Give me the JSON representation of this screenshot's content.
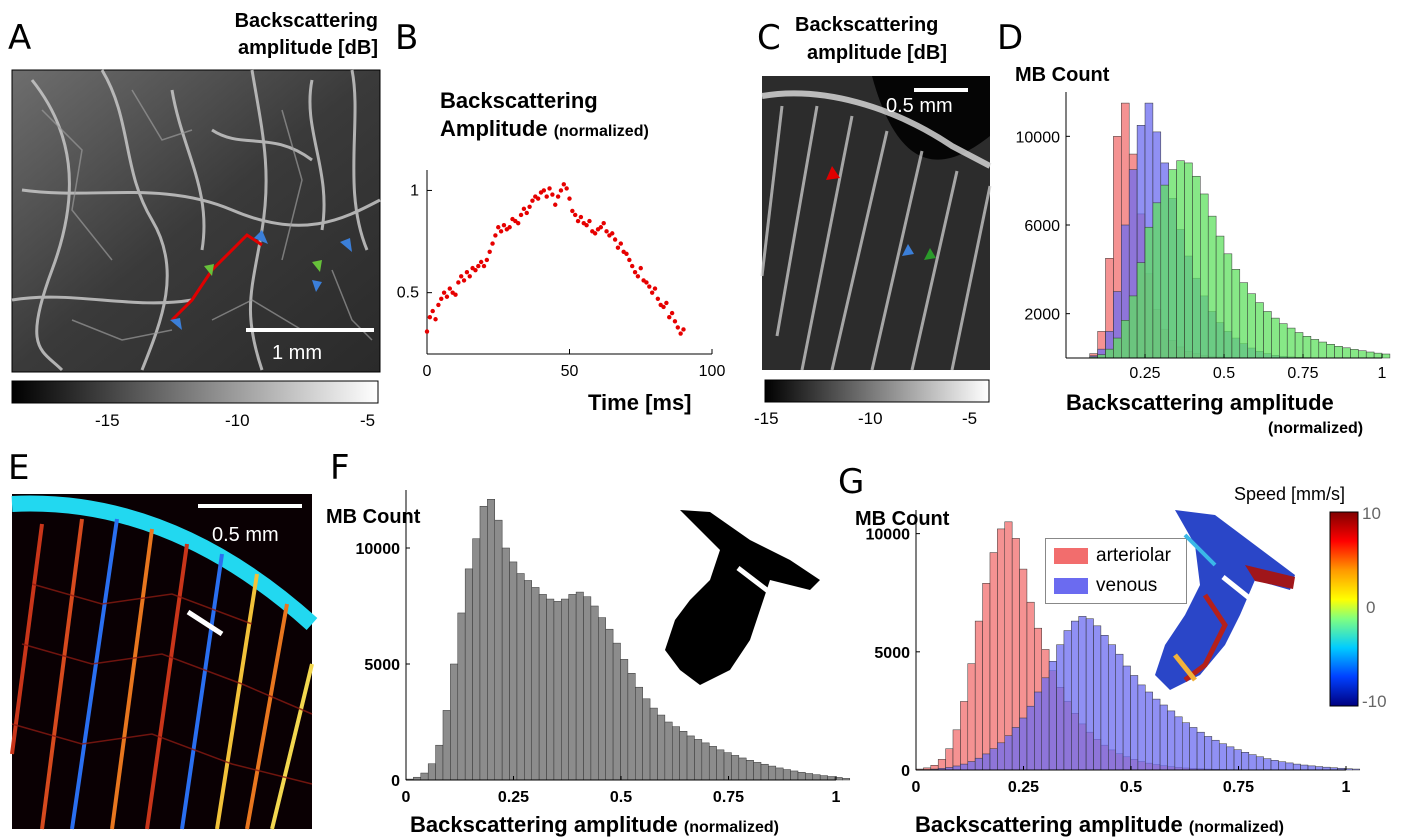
{
  "panels": {
    "A": {
      "letter": "A",
      "title1": "Backscattering",
      "title2": "amplitude [dB]",
      "scalebar": "1 mm",
      "colorbar_ticks": [
        "-15",
        "-10",
        "-5"
      ]
    },
    "B": {
      "letter": "B",
      "ylabel1": "Backscattering",
      "ylabel2": "Amplitude",
      "ylabel_suffix": "(normalized)",
      "xlabel": "Time [ms]"
    },
    "C": {
      "letter": "C",
      "title1": "Backscattering",
      "title2": "amplitude [dB]",
      "scalebar": "0.5 mm",
      "colorbar_ticks": [
        "-15",
        "-10",
        "-5"
      ]
    },
    "D": {
      "letter": "D",
      "ylabel": "MB Count",
      "xlabel1": "Backscattering amplitude",
      "xlabel2": "(normalized)"
    },
    "E": {
      "letter": "E",
      "scalebar": "0.5 mm"
    },
    "F": {
      "letter": "F",
      "ylabel": "MB Count",
      "xlabel": "Backscattering amplitude",
      "xlabel_suffix": "(normalized)"
    },
    "G": {
      "letter": "G",
      "ylabel": "MB Count",
      "xlabel": "Backscattering amplitude",
      "xlabel_suffix": "(normalized)",
      "speed_label": "Speed [mm/s]",
      "speed_ticks": [
        "10",
        "0",
        "-10"
      ],
      "legend": [
        "arteriolar",
        "venous"
      ]
    }
  },
  "colors": {
    "arteriolar": "#f26d6d",
    "venous": "#6b6bf0",
    "green": "#5fe05f",
    "gray": "#8c8c8c",
    "red_dot": "#e60000"
  },
  "chart_data": [
    {
      "id": "B",
      "type": "scatter",
      "xlabel": "Time [ms]",
      "ylabel": "Backscattering Amplitude (normalized)",
      "xlim": [
        0,
        100
      ],
      "ylim": [
        0.2,
        1.1
      ],
      "xticks": [
        0,
        50,
        100
      ],
      "yticks": [
        0.5,
        1
      ],
      "x": [
        0,
        1,
        2,
        3,
        4,
        5,
        6,
        7,
        8,
        9,
        10,
        11,
        12,
        13,
        14,
        15,
        16,
        17,
        18,
        19,
        20,
        21,
        22,
        23,
        24,
        25,
        26,
        27,
        28,
        29,
        30,
        31,
        32,
        33,
        34,
        35,
        36,
        37,
        38,
        39,
        40,
        41,
        42,
        43,
        44,
        45,
        46,
        47,
        48,
        49,
        50,
        51,
        52,
        53,
        54,
        55,
        56,
        57,
        58,
        59,
        60,
        61,
        62,
        63,
        64,
        65,
        66,
        67,
        68,
        69,
        70,
        71,
        72,
        73,
        74,
        75,
        76,
        77,
        78,
        79,
        80,
        81,
        82,
        83,
        84,
        85,
        86,
        87,
        88,
        89,
        90
      ],
      "y": [
        0.31,
        0.38,
        0.41,
        0.37,
        0.44,
        0.47,
        0.5,
        0.48,
        0.52,
        0.5,
        0.49,
        0.55,
        0.58,
        0.56,
        0.6,
        0.58,
        0.62,
        0.61,
        0.63,
        0.65,
        0.63,
        0.66,
        0.7,
        0.74,
        0.78,
        0.82,
        0.8,
        0.83,
        0.81,
        0.82,
        0.86,
        0.85,
        0.84,
        0.88,
        0.91,
        0.89,
        0.92,
        0.95,
        0.97,
        0.96,
        0.99,
        1.0,
        0.97,
        1.01,
        0.98,
        0.93,
        0.97,
        1.0,
        1.03,
        1.01,
        0.96,
        0.9,
        0.88,
        0.85,
        0.87,
        0.84,
        0.83,
        0.85,
        0.8,
        0.79,
        0.81,
        0.82,
        0.84,
        0.8,
        0.78,
        0.79,
        0.76,
        0.72,
        0.74,
        0.7,
        0.69,
        0.66,
        0.63,
        0.6,
        0.58,
        0.62,
        0.56,
        0.55,
        0.53,
        0.5,
        0.52,
        0.47,
        0.44,
        0.43,
        0.45,
        0.38,
        0.4,
        0.36,
        0.33,
        0.3,
        0.32
      ]
    },
    {
      "id": "D",
      "type": "bar",
      "xlabel": "Backscattering amplitude (normalized)",
      "ylabel": "MB Count",
      "xlim": [
        0,
        1
      ],
      "ylim": [
        0,
        12000
      ],
      "xticks": [
        0.25,
        0.5,
        0.75,
        1
      ],
      "yticks": [
        2000,
        6000,
        10000
      ],
      "bin_width": 0.025,
      "bins": [
        0.05,
        0.075,
        0.1,
        0.125,
        0.15,
        0.175,
        0.2,
        0.225,
        0.25,
        0.275,
        0.3,
        0.325,
        0.35,
        0.375,
        0.4,
        0.425,
        0.45,
        0.475,
        0.5,
        0.525,
        0.55,
        0.575,
        0.6,
        0.625,
        0.65,
        0.675,
        0.7,
        0.725,
        0.75,
        0.775,
        0.8,
        0.825,
        0.85,
        0.875,
        0.9,
        0.925,
        0.95,
        0.975,
        1.0
      ],
      "series": [
        {
          "name": "",
          "color": "#f26d6d",
          "values": [
            0,
            200,
            1200,
            4500,
            10000,
            11500,
            9200,
            6500,
            3800,
            2200,
            1300,
            800,
            500,
            300,
            200,
            120,
            80,
            50,
            30,
            20,
            10,
            5,
            0,
            0,
            0,
            0,
            0,
            0,
            0,
            0,
            0,
            0,
            0,
            0,
            0,
            0,
            0,
            0,
            0
          ]
        },
        {
          "name": "",
          "color": "#6b6bf0",
          "values": [
            0,
            100,
            400,
            1200,
            3000,
            6000,
            8500,
            10500,
            11500,
            10200,
            8800,
            7200,
            5800,
            4600,
            3600,
            2800,
            2100,
            1600,
            1200,
            900,
            650,
            450,
            300,
            200,
            120,
            80,
            50,
            30,
            20,
            10,
            5,
            0,
            0,
            0,
            0,
            0,
            0,
            0,
            0
          ]
        },
        {
          "name": "",
          "color": "#5fe05f",
          "values": [
            0,
            50,
            150,
            400,
            900,
            1700,
            2800,
            4300,
            5900,
            7000,
            7800,
            8500,
            8900,
            8800,
            8200,
            7400,
            6400,
            5500,
            4700,
            4000,
            3400,
            2900,
            2500,
            2100,
            1800,
            1550,
            1350,
            1150,
            980,
            840,
            720,
            620,
            530,
            460,
            390,
            330,
            270,
            220,
            180
          ]
        }
      ]
    },
    {
      "id": "F",
      "type": "bar",
      "xlabel": "Backscattering amplitude (normalized)",
      "ylabel": "MB Count",
      "xlim": [
        0,
        1
      ],
      "ylim": [
        0,
        12500
      ],
      "xticks": [
        0,
        0.25,
        0.5,
        0.75,
        1
      ],
      "yticks": [
        0,
        5000,
        10000
      ],
      "bin_width": 0.0172,
      "series": [
        {
          "name": "",
          "color": "#8c8c8c",
          "values": [
            40,
            120,
            300,
            700,
            1500,
            3000,
            5000,
            7200,
            9100,
            10400,
            11800,
            12100,
            11200,
            10000,
            9400,
            8900,
            8600,
            8300,
            8000,
            7800,
            7700,
            7800,
            8000,
            8100,
            7900,
            7500,
            7000,
            6500,
            5900,
            5200,
            4600,
            4000,
            3500,
            3100,
            2800,
            2500,
            2300,
            2100,
            1900,
            1750,
            1600,
            1450,
            1300,
            1180,
            1060,
            950,
            850,
            760,
            680,
            600,
            520,
            450,
            390,
            330,
            280,
            230,
            190,
            150,
            110,
            70
          ]
        }
      ]
    },
    {
      "id": "G",
      "type": "bar",
      "xlabel": "Backscattering amplitude (normalized)",
      "ylabel": "MB Count",
      "xlim": [
        0,
        1
      ],
      "ylim": [
        0,
        11000
      ],
      "xticks": [
        0,
        0.25,
        0.5,
        0.75,
        1
      ],
      "yticks": [
        0,
        5000,
        10000
      ],
      "bin_width": 0.0172,
      "series": [
        {
          "name": "arteriolar",
          "color": "#f26d6d",
          "values": [
            40,
            90,
            200,
            450,
            900,
            1700,
            2900,
            4500,
            6300,
            7900,
            9200,
            10200,
            10500,
            9800,
            8500,
            7100,
            6000,
            5100,
            4200,
            3500,
            2900,
            2400,
            1950,
            1600,
            1300,
            1050,
            850,
            690,
            560,
            450,
            360,
            290,
            230,
            180,
            140,
            110,
            85,
            65,
            50,
            40,
            30,
            22,
            16,
            12,
            9,
            7,
            5,
            4,
            3,
            2,
            2,
            1,
            1,
            0,
            0,
            0,
            0,
            0,
            0,
            0
          ]
        },
        {
          "name": "venous",
          "color": "#6b6bf0",
          "values": [
            10,
            20,
            40,
            70,
            110,
            170,
            250,
            360,
            500,
            680,
            900,
            1150,
            1450,
            1800,
            2200,
            2700,
            3300,
            3900,
            4600,
            5300,
            5900,
            6300,
            6500,
            6400,
            6100,
            5700,
            5300,
            4900,
            4400,
            4000,
            3600,
            3300,
            3000,
            2750,
            2500,
            2250,
            2000,
            1800,
            1600,
            1420,
            1260,
            1110,
            980,
            860,
            750,
            650,
            560,
            480,
            410,
            350,
            300,
            250,
            210,
            175,
            145,
            120,
            95,
            75,
            55,
            40
          ]
        }
      ]
    }
  ]
}
